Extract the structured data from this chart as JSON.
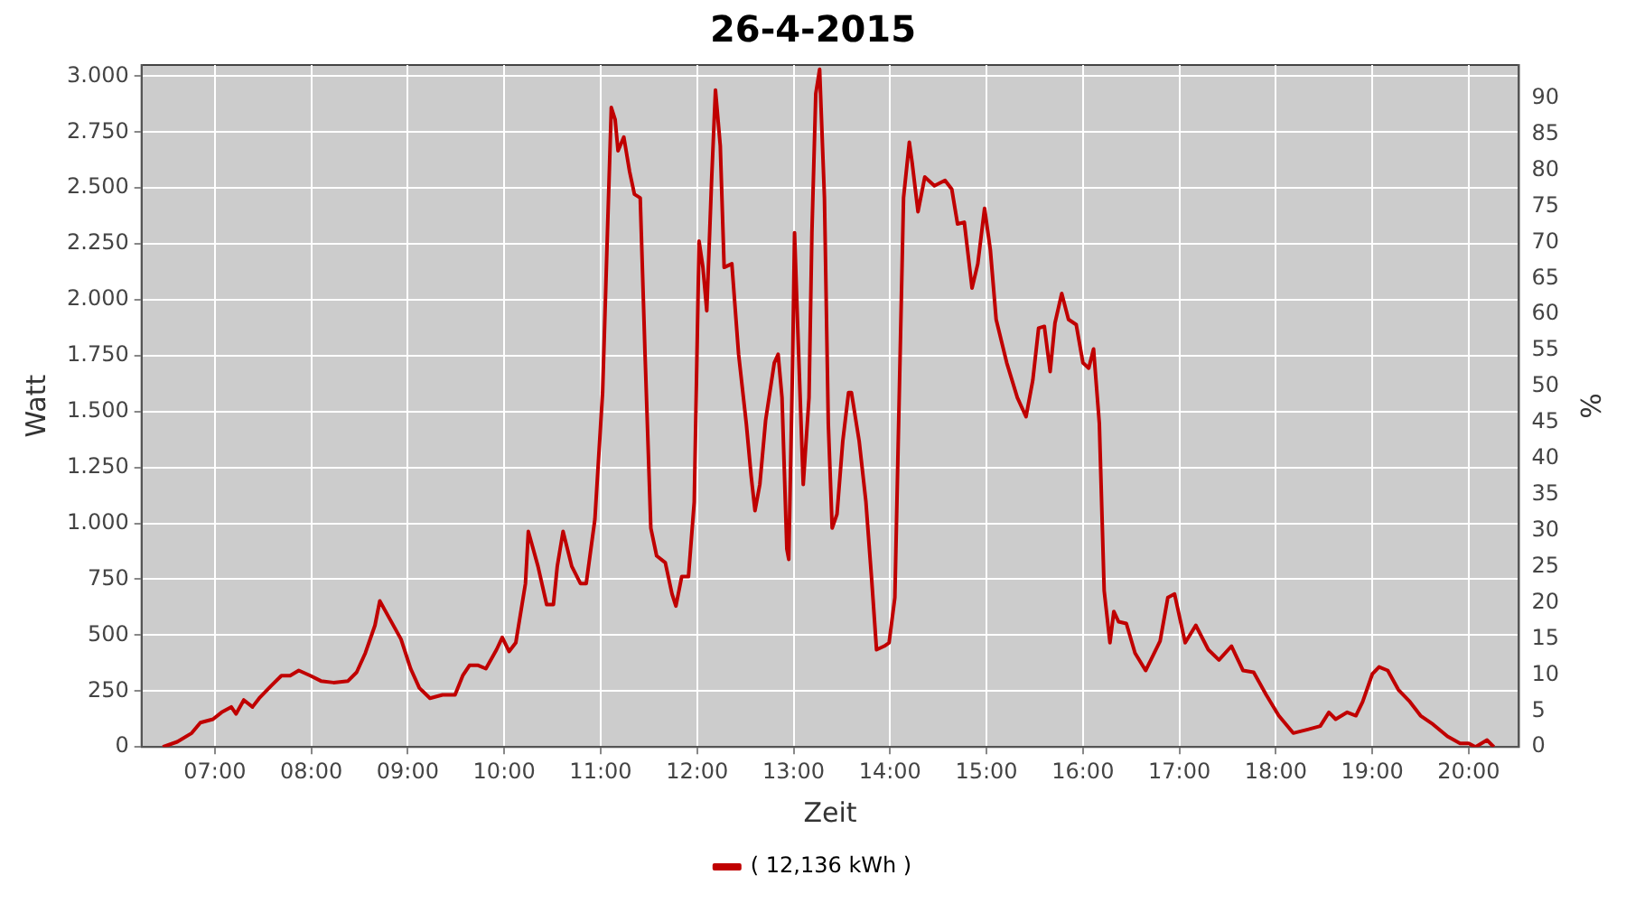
{
  "chart_data": {
    "type": "line",
    "title": "26-4-2015",
    "xlabel": "Zeit",
    "ylabel": "Watt",
    "y2label": "%",
    "x": [
      6.46,
      6.61,
      6.76,
      6.85,
      6.98,
      7.07,
      7.17,
      7.22,
      7.3,
      7.39,
      7.46,
      7.58,
      7.69,
      7.78,
      7.87,
      7.99,
      8.1,
      8.23,
      8.38,
      8.47,
      8.56,
      8.66,
      8.71,
      8.8,
      8.93,
      9.03,
      9.12,
      9.23,
      9.36,
      9.49,
      9.57,
      9.64,
      9.73,
      9.81,
      9.92,
      9.98,
      10.05,
      10.12,
      10.22,
      10.25,
      10.35,
      10.44,
      10.51,
      10.55,
      10.61,
      10.7,
      10.79,
      10.85,
      10.94,
      11.02,
      11.07,
      11.11,
      11.15,
      11.18,
      11.24,
      11.3,
      11.35,
      11.41,
      11.46,
      11.52,
      11.58,
      11.67,
      11.74,
      11.78,
      11.84,
      11.91,
      11.97,
      12.02,
      12.06,
      12.1,
      12.15,
      12.19,
      12.24,
      12.28,
      12.36,
      12.43,
      12.51,
      12.56,
      12.6,
      12.65,
      12.71,
      12.8,
      12.84,
      12.88,
      12.93,
      12.95,
      12.99,
      13.01,
      13.04,
      13.1,
      13.16,
      13.19,
      13.23,
      13.27,
      13.32,
      13.36,
      13.4,
      13.45,
      13.51,
      13.57,
      13.6,
      13.68,
      13.75,
      13.81,
      13.86,
      13.94,
      13.99,
      14.05,
      14.14,
      14.2,
      14.23,
      14.29,
      14.36,
      14.46,
      14.57,
      14.64,
      14.7,
      14.77,
      14.85,
      14.91,
      14.98,
      15.04,
      15.1,
      15.21,
      15.32,
      15.41,
      15.48,
      15.54,
      15.6,
      15.66,
      15.71,
      15.78,
      15.85,
      15.93,
      16.0,
      16.06,
      16.11,
      16.17,
      16.22,
      16.28,
      16.32,
      16.37,
      16.45,
      16.54,
      16.65,
      16.8,
      16.88,
      16.95,
      17.06,
      17.17,
      17.3,
      17.41,
      17.54,
      17.66,
      17.77,
      17.9,
      18.03,
      18.18,
      18.33,
      18.46,
      18.55,
      18.62,
      18.74,
      18.83,
      18.9,
      19.0,
      19.07,
      19.16,
      19.27,
      19.39,
      19.5,
      19.63,
      19.78,
      19.91,
      20.0,
      20.07,
      20.19,
      20.26
    ],
    "series": [
      {
        "name": "( 12,136 kWh )",
        "color": "#c00000",
        "values": [
          0,
          23,
          62,
          109,
          124,
          155,
          179,
          148,
          210,
          179,
          218,
          272,
          319,
          319,
          342,
          319,
          295,
          288,
          295,
          334,
          420,
          544,
          653,
          583,
          482,
          350,
          264,
          218,
          233,
          233,
          319,
          365,
          365,
          350,
          435,
          490,
          427,
          466,
          731,
          964,
          808,
          637,
          637,
          808,
          964,
          808,
          731,
          731,
          1018,
          1585,
          2300,
          2860,
          2806,
          2666,
          2728,
          2573,
          2472,
          2456,
          1756,
          979,
          855,
          824,
          684,
          630,
          762,
          762,
          1096,
          2262,
          2145,
          1951,
          2534,
          2938,
          2689,
          2145,
          2161,
          1756,
          1446,
          1212,
          1057,
          1174,
          1461,
          1718,
          1756,
          1562,
          886,
          839,
          1718,
          2300,
          1912,
          1174,
          1562,
          2300,
          2922,
          3031,
          2456,
          1446,
          979,
          1041,
          1368,
          1585,
          1585,
          1368,
          1096,
          746,
          435,
          451,
          466,
          668,
          2456,
          2705,
          2611,
          2394,
          2549,
          2510,
          2534,
          2495,
          2339,
          2347,
          2052,
          2161,
          2409,
          2223,
          1912,
          1718,
          1562,
          1477,
          1640,
          1873,
          1881,
          1679,
          1896,
          2028,
          1912,
          1889,
          1718,
          1694,
          1780,
          1446,
          699,
          466,
          606,
          560,
          552,
          420,
          342,
          474,
          668,
          684,
          466,
          544,
          435,
          389,
          451,
          342,
          334,
          233,
          140,
          62,
          78,
          93,
          155,
          124,
          155,
          140,
          202,
          326,
          358,
          342,
          256,
          202,
          140,
          101,
          47,
          16,
          16,
          0,
          31,
          0
        ]
      }
    ],
    "xlim": [
      6.24,
      20.52
    ],
    "xticks": [
      {
        "value": 7,
        "label": "07:00"
      },
      {
        "value": 8,
        "label": "08:00"
      },
      {
        "value": 9,
        "label": "09:00"
      },
      {
        "value": 10,
        "label": "10:00"
      },
      {
        "value": 11,
        "label": "11:00"
      },
      {
        "value": 12,
        "label": "12:00"
      },
      {
        "value": 13,
        "label": "13:00"
      },
      {
        "value": 14,
        "label": "14:00"
      },
      {
        "value": 15,
        "label": "15:00"
      },
      {
        "value": 16,
        "label": "16:00"
      },
      {
        "value": 17,
        "label": "17:00"
      },
      {
        "value": 18,
        "label": "18:00"
      },
      {
        "value": 19,
        "label": "19:00"
      },
      {
        "value": 20,
        "label": "20:00"
      }
    ],
    "ylim": [
      0,
      3050
    ],
    "yticks": [
      0,
      250,
      500,
      750,
      {
        "value": 1000,
        "label": "1.000"
      },
      {
        "value": 1250,
        "label": "1.250"
      },
      {
        "value": 1500,
        "label": "1.500"
      },
      {
        "value": 1750,
        "label": "1.750"
      },
      {
        "value": 2000,
        "label": "2.000"
      },
      {
        "value": 2250,
        "label": "2.250"
      },
      {
        "value": 2500,
        "label": "2.500"
      },
      {
        "value": 2750,
        "label": "2.750"
      },
      {
        "value": 3000,
        "label": "3.000"
      }
    ],
    "y2lim": [
      0,
      94.6
    ],
    "y2ticks": [
      0,
      5,
      10,
      15,
      20,
      25,
      30,
      35,
      40,
      45,
      50,
      55,
      60,
      65,
      70,
      75,
      80,
      85,
      90
    ],
    "grid": true,
    "legend": "bottom",
    "marker": "none",
    "line_style": "solid"
  }
}
